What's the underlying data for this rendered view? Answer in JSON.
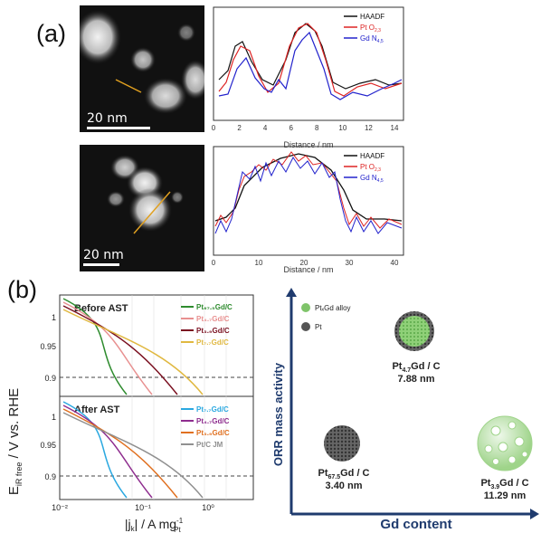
{
  "panel_a_label": "(a)",
  "panel_b_label": "(b)",
  "stem": {
    "top_scale": "20 nm",
    "bottom_scale": "20 nm"
  },
  "line_profiles": {
    "x_label": "Distance / nm",
    "legend": [
      "HAADF",
      "Pt O",
      "Gd N"
    ],
    "legend_sub": [
      "",
      "2,3",
      "4,5"
    ],
    "top_ticks": [
      "0",
      "2",
      "4",
      "6",
      "8",
      "10",
      "12",
      "14"
    ],
    "bottom_ticks": [
      "0",
      "10",
      "20",
      "30",
      "40"
    ]
  },
  "polarization": {
    "y_label": "E",
    "y_label_sub": "iR free",
    "y_label_rest": " / V vs. RHE",
    "x_label": "|j",
    "x_label_sub": "k",
    "x_label_rest": "| / A mg",
    "x_label_sup": "-1",
    "x_label_sub2": "Pt",
    "x_ticks": [
      "10⁻²",
      "10⁻¹",
      "10⁰"
    ],
    "y_ticks_top": [
      "1",
      "0.95",
      "0.9"
    ],
    "y_ticks_bottom": [
      "1",
      "0.95",
      "0.9"
    ],
    "before_title": "Before AST",
    "after_title": "After AST",
    "before_legend": [
      "Pt₆₇.₅Gd/C",
      "Pt₄.₇Gd/C",
      "Pt₃.₉Gd/C",
      "Pt₇.₇Gd/C"
    ],
    "after_legend": [
      "Pt₇.₇Gd/C",
      "Pt₄.₇Gd/C",
      "Pt₃.₉Gd/C",
      "Pt/C JM"
    ],
    "colors_before": [
      "#2e8b2e",
      "#e89090",
      "#7a1020",
      "#e0b840"
    ],
    "colors_after": [
      "#2aa8e0",
      "#8e2c8e",
      "#e07020",
      "#909090"
    ]
  },
  "schematic": {
    "y_label": "ORR mass activity",
    "x_label": "Gd content",
    "legend": [
      "PtₓGd alloy",
      "Pt"
    ],
    "particles": [
      {
        "name": "Pt",
        "sub": "4.7",
        "rest": "Gd / C",
        "size": "7.88 nm"
      },
      {
        "name": "Pt",
        "sub": "67.5",
        "rest": "Gd / C",
        "size": "3.40 nm"
      },
      {
        "name": "Pt",
        "sub": "3.9",
        "rest": "Gd / C",
        "size": "11.29 nm"
      }
    ],
    "colors": {
      "axis": "#1f3b6e",
      "alloy": "#7fc46a",
      "pt": "#555555"
    }
  }
}
